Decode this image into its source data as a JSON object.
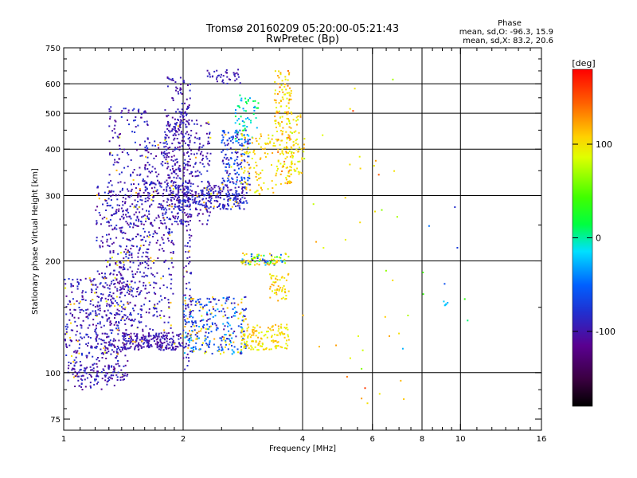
{
  "chart_data": {
    "type": "scatter",
    "title": "Tromsø 20160209 05:20:00-05:21:43",
    "subtitle": "RwPretec (Bp)",
    "xlabel": "Frequency [MHz]",
    "ylabel": "Stationary phase Virtual Height [km]",
    "x_scale": "log",
    "y_scale": "log",
    "xlim": [
      1,
      16
    ],
    "ylim": [
      70,
      750
    ],
    "x_ticks": [
      "1",
      "2",
      "4",
      "6",
      "8",
      "10",
      "16"
    ],
    "x_tick_values": [
      1,
      2,
      4,
      6,
      8,
      10,
      16
    ],
    "y_ticks": [
      "75",
      "100",
      "200",
      "300",
      "400",
      "500",
      "600",
      "750"
    ],
    "y_tick_values": [
      75,
      100,
      200,
      300,
      400,
      500,
      600,
      750
    ],
    "grid": true,
    "legend_block": {
      "title": "Phase",
      "line1": "mean, sd,O: -96.3, 15.9",
      "line2": "mean, sd,X: 83.2, 20.6"
    },
    "colorbar": {
      "label": "[deg]",
      "range": [
        -180,
        180
      ],
      "ticks": [
        "100",
        "0",
        "-100"
      ],
      "tick_values": [
        100,
        0,
        -100
      ],
      "colormap": [
        "#000000",
        "#3a0040",
        "#5a0090",
        "#2030d0",
        "#0060ff",
        "#00e0ff",
        "#00ff40",
        "#40ff00",
        "#e0ff00",
        "#ffd000",
        "#ff6000",
        "#ff0000"
      ]
    },
    "clusters": [
      {
        "xr": [
          1.0,
          1.45
        ],
        "yr": [
          95,
          180
        ],
        "n": 420,
        "phase": [
          -115,
          -75
        ],
        "yellow": 0.06
      },
      {
        "xr": [
          1.2,
          1.9
        ],
        "yr": [
          115,
          330
        ],
        "n": 520,
        "phase": [
          -115,
          -75
        ],
        "yellow": 0.08
      },
      {
        "xr": [
          1.3,
          1.65
        ],
        "yr": [
          160,
          520
        ],
        "n": 300,
        "phase": [
          -115,
          -75
        ],
        "yellow": 0.03
      },
      {
        "xr": [
          1.6,
          2.0
        ],
        "yr": [
          250,
          420
        ],
        "n": 180,
        "phase": [
          -115,
          -75
        ],
        "yellow": 0.02
      },
      {
        "xr": [
          1.8,
          2.05
        ],
        "yr": [
          420,
          625
        ],
        "n": 90,
        "phase": [
          -115,
          -80
        ],
        "yellow": 0.0
      },
      {
        "xr": [
          1.8,
          2.35
        ],
        "yr": [
          250,
          480
        ],
        "n": 240,
        "phase": [
          -115,
          -75
        ],
        "yellow": 0.02
      },
      {
        "xr": [
          1.9,
          2.9
        ],
        "yr": [
          275,
          320
        ],
        "n": 260,
        "phase": [
          -110,
          -70
        ],
        "yellow": 0.04
      },
      {
        "xr": [
          2.5,
          2.95
        ],
        "yr": [
          320,
          450
        ],
        "n": 160,
        "phase": [
          -110,
          -40
        ],
        "yellow": 0.05
      },
      {
        "xr": [
          2.3,
          2.8
        ],
        "yr": [
          600,
          660
        ],
        "n": 40,
        "phase": [
          -110,
          -85
        ],
        "yellow": 0.0
      },
      {
        "xr": [
          2.7,
          3.1
        ],
        "yr": [
          420,
          560
        ],
        "n": 60,
        "phase": [
          -40,
          20
        ],
        "yellow": 0.0
      },
      {
        "xr": [
          2.8,
          3.4
        ],
        "yr": [
          300,
          440
        ],
        "n": 90,
        "phase": [
          80,
          130
        ],
        "yellow": 0.6
      },
      {
        "xr": [
          3.4,
          3.75
        ],
        "yr": [
          320,
          650
        ],
        "n": 170,
        "phase": [
          90,
          150
        ],
        "yellow": 0.7
      },
      {
        "xr": [
          3.7,
          4.05
        ],
        "yr": [
          340,
          520
        ],
        "n": 60,
        "phase": [
          70,
          120
        ],
        "yellow": 0.7
      },
      {
        "xr": [
          1.4,
          2.0
        ],
        "yr": [
          115,
          128
        ],
        "n": 200,
        "phase": [
          -115,
          -85
        ],
        "yellow": 0.03
      },
      {
        "xr": [
          2.0,
          2.9
        ],
        "yr": [
          112,
          160
        ],
        "n": 320,
        "phase": [
          -110,
          -20
        ],
        "yellow": 0.25
      },
      {
        "xr": [
          2.8,
          3.7
        ],
        "yr": [
          115,
          135
        ],
        "n": 140,
        "phase": [
          80,
          120
        ],
        "yellow": 0.7
      },
      {
        "xr": [
          2.8,
          3.7
        ],
        "yr": [
          195,
          210
        ],
        "n": 90,
        "phase": [
          -100,
          110
        ],
        "yellow": 0.35
      },
      {
        "xr": [
          3.3,
          3.7
        ],
        "yr": [
          155,
          185
        ],
        "n": 50,
        "phase": [
          80,
          120
        ],
        "yellow": 0.8
      },
      {
        "xr": [
          1.05,
          1.35
        ],
        "yr": [
          90,
          105
        ],
        "n": 60,
        "phase": [
          -115,
          -80
        ],
        "yellow": 0.0
      },
      {
        "xr": [
          2.0,
          2.1
        ],
        "yr": [
          100,
          600
        ],
        "n": 120,
        "phase": [
          -115,
          -80
        ],
        "yellow": 0.02
      },
      {
        "xr": [
          4.0,
          7.2
        ],
        "yr": [
          80,
          620
        ],
        "n": 40,
        "phase": [
          60,
          160
        ],
        "yellow": 0.4
      },
      {
        "xr": [
          7.0,
          10.5
        ],
        "yr": [
          110,
          320
        ],
        "n": 10,
        "phase": [
          -90,
          120
        ],
        "yellow": 0.3
      },
      {
        "xr": [
          9.0,
          9.3
        ],
        "yr": [
          150,
          156
        ],
        "n": 6,
        "phase": [
          -30,
          -20
        ],
        "yellow": 0.0
      }
    ]
  }
}
